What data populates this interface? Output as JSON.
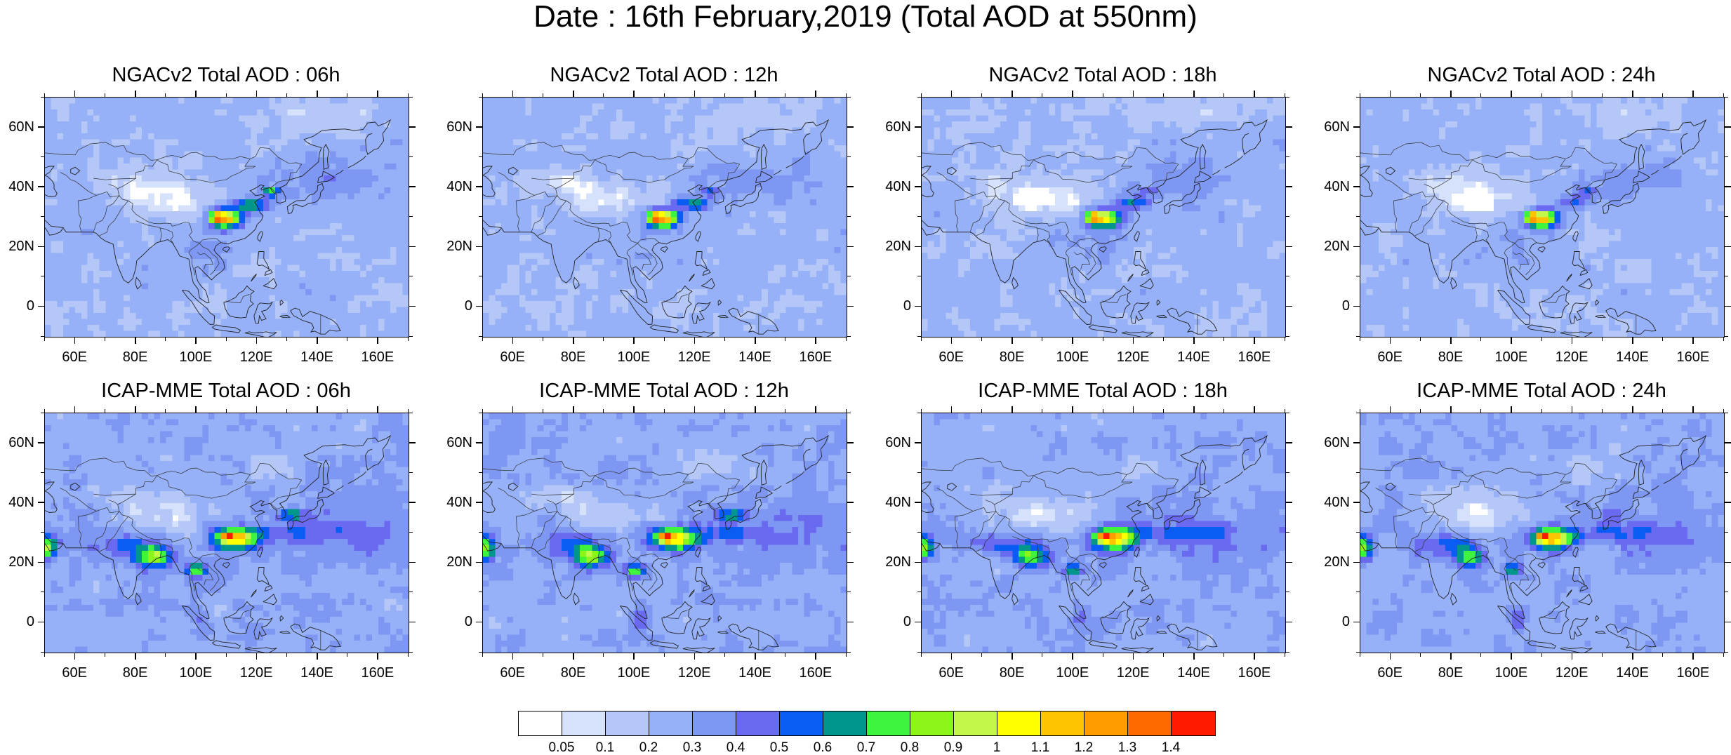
{
  "title": "Date : 16th February,2019 (Total AOD at 550nm)",
  "panels": [
    {
      "title": "NGACv2 Total AOD : 06h",
      "model": "ngac"
    },
    {
      "title": "NGACv2 Total AOD : 12h",
      "model": "ngac"
    },
    {
      "title": "NGACv2 Total AOD : 18h",
      "model": "ngac"
    },
    {
      "title": "NGACv2 Total AOD : 24h",
      "model": "ngac"
    },
    {
      "title": "ICAP-MME Total AOD : 06h",
      "model": "icap"
    },
    {
      "title": "ICAP-MME Total AOD : 12h",
      "model": "icap"
    },
    {
      "title": "ICAP-MME Total AOD : 18h",
      "model": "icap"
    },
    {
      "title": "ICAP-MME Total AOD : 24h",
      "model": "icap"
    }
  ],
  "map": {
    "lon_range": [
      50,
      170
    ],
    "lat_range": [
      -10,
      70
    ],
    "lon_ticks": [
      "60E",
      "80E",
      "100E",
      "120E",
      "140E",
      "160E"
    ],
    "lon_tick_values": [
      60,
      80,
      100,
      120,
      140,
      160
    ],
    "lat_ticks": [
      "60N",
      "40N",
      "20N",
      "0"
    ],
    "lat_tick_values": [
      60,
      40,
      20,
      0
    ]
  },
  "colorbar": {
    "labels": [
      "0.05",
      "0.1",
      "0.2",
      "0.3",
      "0.4",
      "0.5",
      "0.6",
      "0.7",
      "0.8",
      "0.9",
      "1",
      "1.1",
      "1.2",
      "1.3",
      "1.4"
    ],
    "colors": [
      "#ffffff",
      "#d6e1fb",
      "#b5c7f7",
      "#96b1f7",
      "#7d97f2",
      "#6a6af0",
      "#0a5cf5",
      "#00968c",
      "#3ef43c",
      "#8ef51a",
      "#c3f74a",
      "#ffff00",
      "#ffc400",
      "#ff9d00",
      "#ff6a00",
      "#ff1a00"
    ]
  }
}
